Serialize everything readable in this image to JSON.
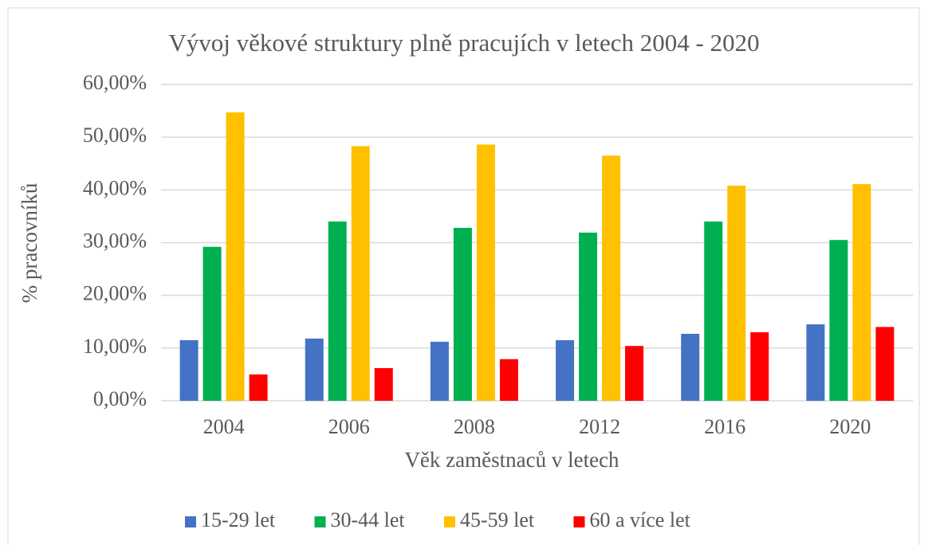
{
  "chart_data": {
    "type": "bar",
    "title": "Vývoj věkové struktury plně pracujích v letech 2004 - 2020",
    "x_label": "Věk zaměstnaců v letech",
    "y_label": "% pracovníků",
    "categories": [
      "2004",
      "2006",
      "2008",
      "2012",
      "2016",
      "2020"
    ],
    "series": [
      {
        "name": "15-29 let",
        "color": "#4472c4",
        "values": [
          11.5,
          11.8,
          11.2,
          11.5,
          12.7,
          14.5
        ]
      },
      {
        "name": "30-44 let",
        "color": "#00b050",
        "values": [
          29.2,
          34.0,
          32.8,
          31.9,
          34.0,
          30.5
        ]
      },
      {
        "name": "45-59 let",
        "color": "#ffc000",
        "values": [
          54.7,
          48.3,
          48.6,
          46.5,
          40.8,
          41.1
        ]
      },
      {
        "name": "60 a více let",
        "color": "#ff0000",
        "values": [
          5.0,
          6.2,
          7.9,
          10.4,
          13.0,
          14.0
        ]
      }
    ],
    "ylim": [
      0,
      60
    ],
    "yticks": [
      {
        "value": 0,
        "label": "0,00%"
      },
      {
        "value": 10,
        "label": "10,00%"
      },
      {
        "value": 20,
        "label": "20,00%"
      },
      {
        "value": 30,
        "label": "30,00%"
      },
      {
        "value": 40,
        "label": "40,00%"
      },
      {
        "value": 50,
        "label": "50,00%"
      },
      {
        "value": 60,
        "label": "60,00%"
      }
    ],
    "grid": true,
    "legend": "bottom"
  }
}
